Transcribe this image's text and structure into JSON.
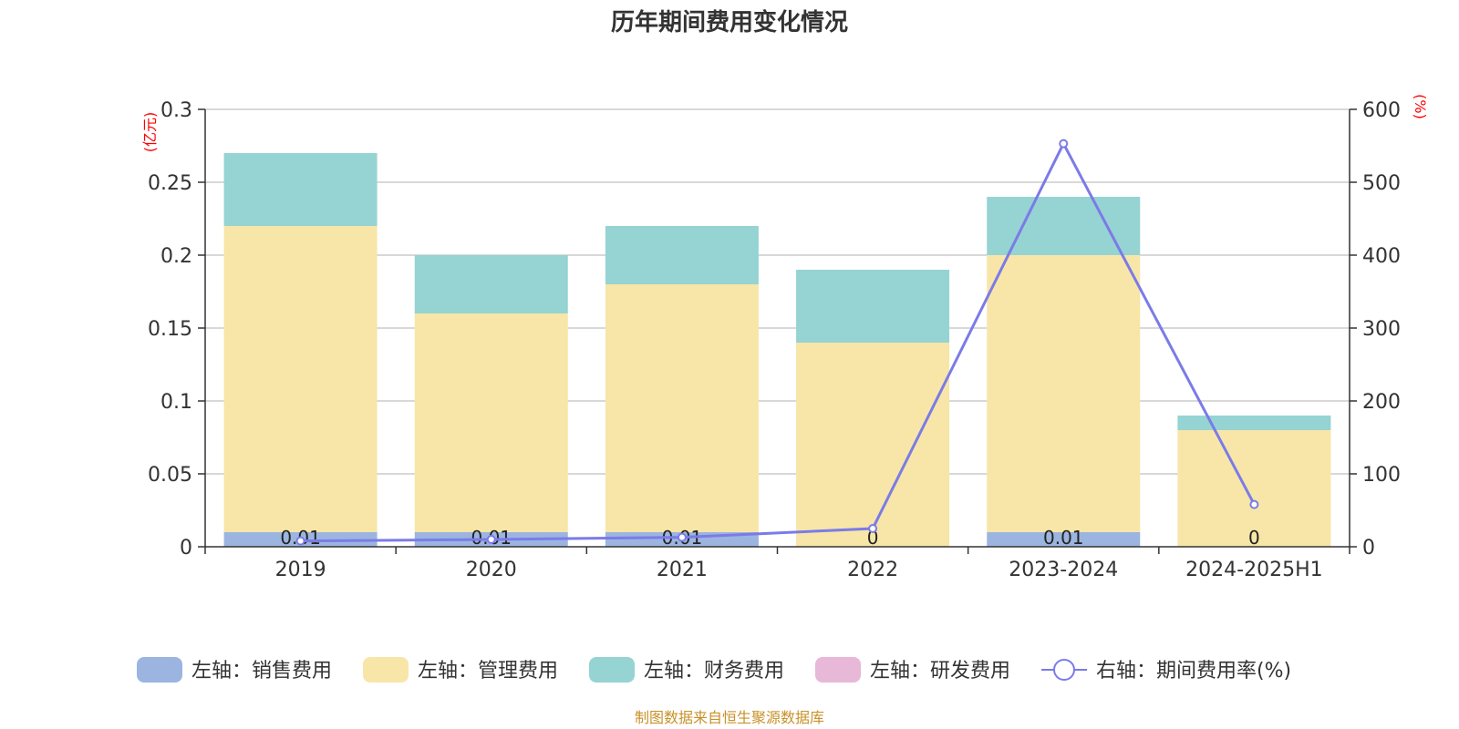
{
  "chart_data": {
    "type": "bar",
    "title": "历年期间费用变化情况",
    "categories": [
      "2019",
      "2020",
      "2021",
      "2022",
      "2023-2024",
      "2024-2025H1"
    ],
    "left_axis": {
      "unit": "(亿元)",
      "ylim": [
        0,
        0.3
      ],
      "ticks": [
        "0",
        "0.05",
        "0.1",
        "0.15",
        "0.2",
        "0.25",
        "0.3"
      ],
      "tick_values": [
        0,
        0.05,
        0.1,
        0.15,
        0.2,
        0.25,
        0.3
      ]
    },
    "right_axis": {
      "unit": "(%)",
      "ylim": [
        0,
        600
      ],
      "ticks": [
        "0",
        "100",
        "200",
        "300",
        "400",
        "500",
        "600"
      ],
      "tick_values": [
        0,
        100,
        200,
        300,
        400,
        500,
        600
      ]
    },
    "series": [
      {
        "name": "左轴：销售费用",
        "color": "#9bb5e0",
        "values": [
          0.01,
          0.01,
          0.01,
          0,
          0.01,
          0
        ],
        "labels": [
          "0.01",
          "0.01",
          "0.01",
          "0",
          "0.01",
          "0"
        ]
      },
      {
        "name": "左轴：管理费用",
        "color": "#f7e6a8",
        "values": [
          0.21,
          0.15,
          0.17,
          0.14,
          0.19,
          0.08
        ]
      },
      {
        "name": "左轴：财务费用",
        "color": "#96d3d3",
        "values": [
          0.05,
          0.04,
          0.04,
          0.05,
          0.04,
          0.01
        ]
      },
      {
        "name": "左轴：研发费用",
        "color": "#e8b8d8",
        "values": [
          0,
          0,
          0,
          0,
          0,
          0
        ]
      }
    ],
    "line": {
      "name": "右轴：期间费用率(%)",
      "color": "#7b7be8",
      "values": [
        8,
        10,
        13,
        25,
        553,
        58
      ]
    },
    "grid": true,
    "legend_position": "bottom",
    "source": "制图数据来自恒生聚源数据库"
  }
}
